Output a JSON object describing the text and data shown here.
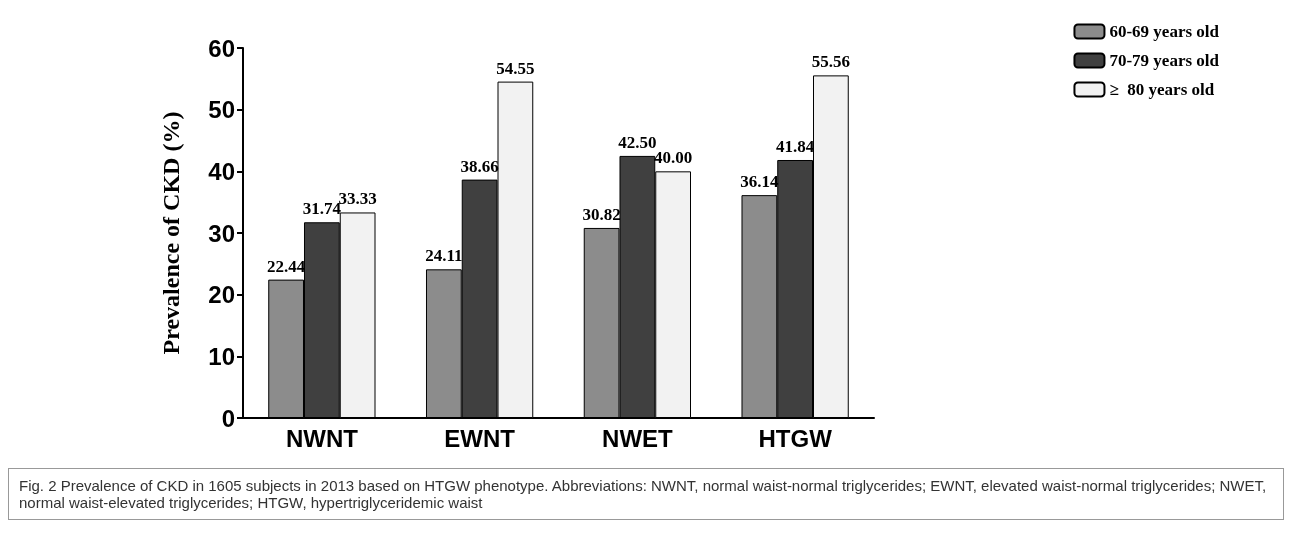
{
  "chart_data": {
    "type": "bar",
    "ylabel": "Prevalence of CKD (%)",
    "categories": [
      "NWNT",
      "EWNT",
      "NWET",
      "HTGW"
    ],
    "series": [
      {
        "name": "60-69 years old",
        "color": "#8c8c8c",
        "values": [
          22.44,
          24.11,
          30.82,
          36.14
        ]
      },
      {
        "name": "70-79 years old",
        "color": "#404040",
        "values": [
          31.74,
          38.66,
          42.5,
          41.84
        ]
      },
      {
        "name": "≥  80 years old",
        "color": "#f2f2f2",
        "values": [
          33.33,
          54.55,
          40.0,
          55.56
        ]
      }
    ],
    "value_labels": [
      [
        "22.44",
        "24.11",
        "30.82",
        "36.14"
      ],
      [
        "31.74",
        "38.66",
        "42.50",
        "41.84"
      ],
      [
        "33.33",
        "54.55",
        "40.00",
        "55.56"
      ]
    ],
    "ylim": [
      0,
      60
    ],
    "yticks": [
      0,
      10,
      20,
      30,
      40,
      50,
      60
    ],
    "grid": false,
    "legend": "top right",
    "annotations": [
      "Fig. 2 Prevalence of CKD in 1605 subjects in 2013 based on HTGW phenotype. Abbreviations: NWNT, normal waist-normal triglycerides; EWNT, elevated waist-normal triglycerides; NWET, normal waist-elevated triglycerides; HTGW, hypertriglyceridemic waist"
    ]
  }
}
